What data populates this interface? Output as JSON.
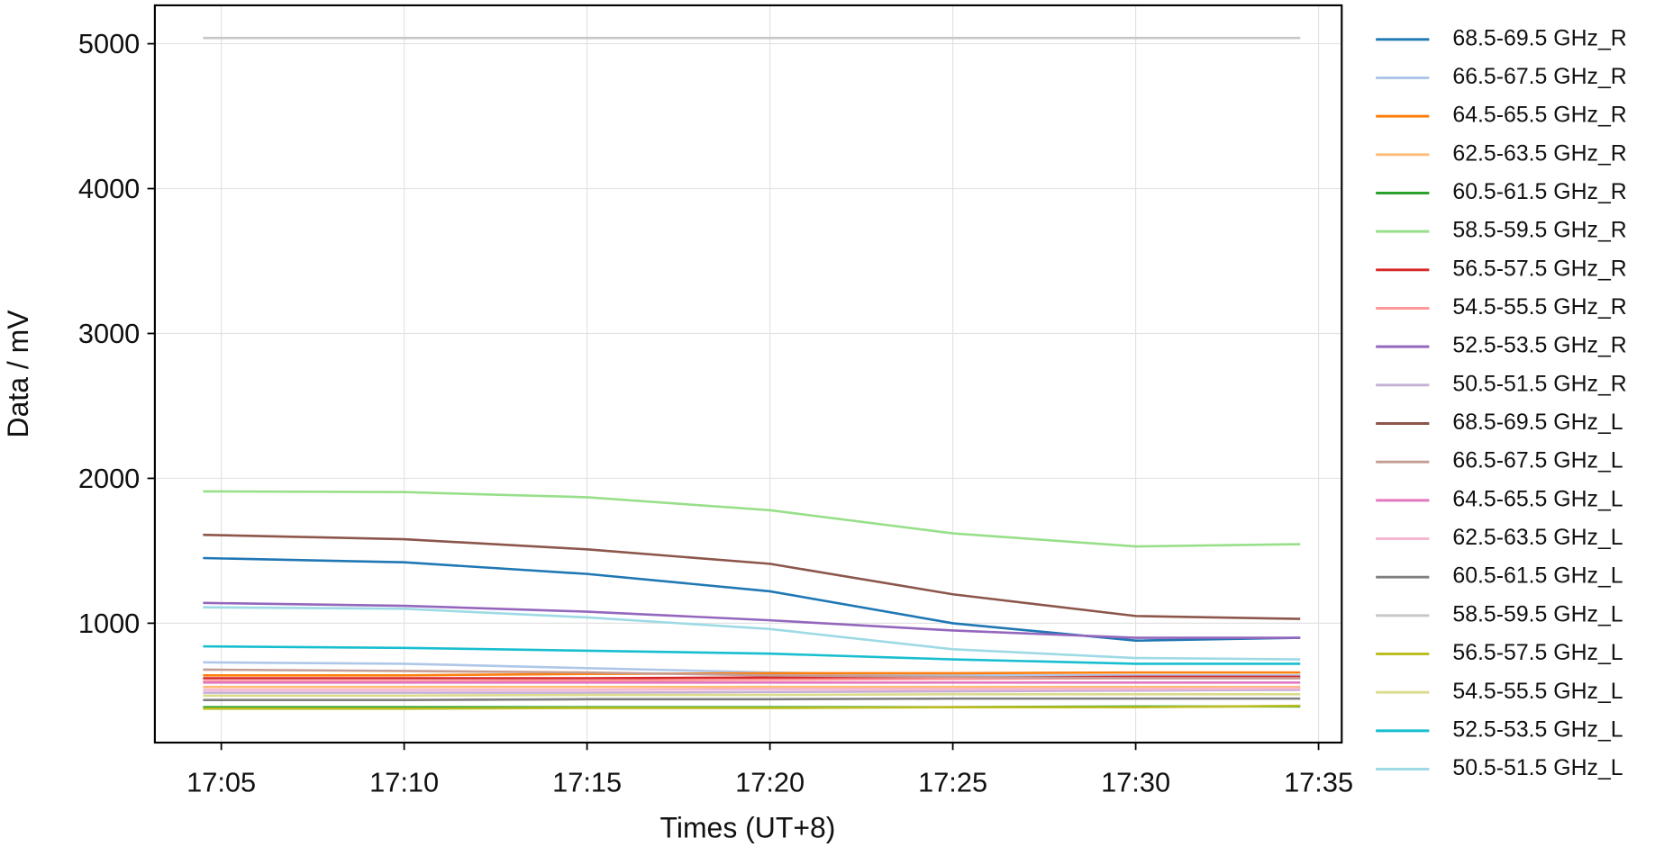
{
  "chart_data": {
    "type": "line",
    "xlabel": "Times (UT+8)",
    "ylabel": "Data / mV",
    "x": [
      "17:04:30",
      "17:10:00",
      "17:15:00",
      "17:20:00",
      "17:25:00",
      "17:30:00",
      "17:34:30"
    ],
    "xlim": [
      "17:03:11",
      "17:35:38"
    ],
    "xticks": [
      "17:05",
      "17:10",
      "17:15",
      "17:20",
      "17:25",
      "17:30",
      "17:35"
    ],
    "ylim": [
      176,
      5265
    ],
    "yticks": [
      1000,
      2000,
      3000,
      4000,
      5000
    ],
    "grid": true,
    "legend": "outside right",
    "series": [
      {
        "name": "68.5-69.5 GHz_R",
        "color": "#1f77b4",
        "values": [
          1450,
          1420,
          1340,
          1220,
          1000,
          880,
          900
        ]
      },
      {
        "name": "66.5-67.5 GHz_R",
        "color": "#aec7e8",
        "values": [
          730,
          720,
          690,
          660,
          640,
          640,
          640
        ]
      },
      {
        "name": "64.5-65.5 GHz_R",
        "color": "#ff7f0e",
        "values": [
          640,
          640,
          650,
          655,
          655,
          660,
          660
        ]
      },
      {
        "name": "62.5-63.5 GHz_R",
        "color": "#ffbb78",
        "values": [
          560,
          560,
          560,
          560,
          560,
          560,
          560
        ]
      },
      {
        "name": "60.5-61.5 GHz_R",
        "color": "#2ca02c",
        "values": [
          420,
          420,
          420,
          420,
          420,
          425,
          425
        ]
      },
      {
        "name": "58.5-59.5 GHz_R",
        "color": "#98df8a",
        "values": [
          1910,
          1905,
          1870,
          1780,
          1620,
          1530,
          1545
        ]
      },
      {
        "name": "56.5-57.5 GHz_R",
        "color": "#d62728",
        "values": [
          620,
          620,
          620,
          625,
          625,
          630,
          630
        ]
      },
      {
        "name": "54.5-55.5 GHz_R",
        "color": "#ff9896",
        "values": [
          600,
          600,
          605,
          610,
          615,
          620,
          620
        ]
      },
      {
        "name": "52.5-53.5 GHz_R",
        "color": "#9467bd",
        "values": [
          1140,
          1120,
          1080,
          1020,
          950,
          900,
          900
        ]
      },
      {
        "name": "50.5-51.5 GHz_R",
        "color": "#c5b0d5",
        "values": [
          520,
          520,
          520,
          525,
          530,
          535,
          540
        ]
      },
      {
        "name": "68.5-69.5 GHz_L",
        "color": "#8c564b",
        "values": [
          1610,
          1580,
          1510,
          1410,
          1200,
          1050,
          1030
        ]
      },
      {
        "name": "66.5-67.5 GHz_L",
        "color": "#c49c94",
        "values": [
          680,
          670,
          660,
          640,
          630,
          620,
          620
        ]
      },
      {
        "name": "64.5-65.5 GHz_L",
        "color": "#e377c2",
        "values": [
          590,
          590,
          590,
          590,
          590,
          590,
          590
        ]
      },
      {
        "name": "62.5-63.5 GHz_L",
        "color": "#f7b6d2",
        "values": [
          540,
          540,
          540,
          545,
          545,
          545,
          550
        ]
      },
      {
        "name": "60.5-61.5 GHz_L",
        "color": "#7f7f7f",
        "values": [
          470,
          470,
          475,
          475,
          480,
          480,
          480
        ]
      },
      {
        "name": "58.5-59.5 GHz_L",
        "color": "#c7c7c7",
        "values": [
          5040,
          5040,
          5040,
          5040,
          5040,
          5040,
          5040
        ]
      },
      {
        "name": "56.5-57.5 GHz_L",
        "color": "#bcbd22",
        "values": [
          410,
          410,
          415,
          415,
          420,
          420,
          430
        ]
      },
      {
        "name": "54.5-55.5 GHz_L",
        "color": "#dbdb8d",
        "values": [
          500,
          500,
          505,
          505,
          510,
          510,
          510
        ]
      },
      {
        "name": "52.5-53.5 GHz_L",
        "color": "#17becf",
        "values": [
          840,
          830,
          810,
          790,
          750,
          720,
          720
        ]
      },
      {
        "name": "50.5-51.5 GHz_L",
        "color": "#9edae5",
        "values": [
          1110,
          1100,
          1040,
          960,
          820,
          760,
          750
        ]
      }
    ]
  }
}
